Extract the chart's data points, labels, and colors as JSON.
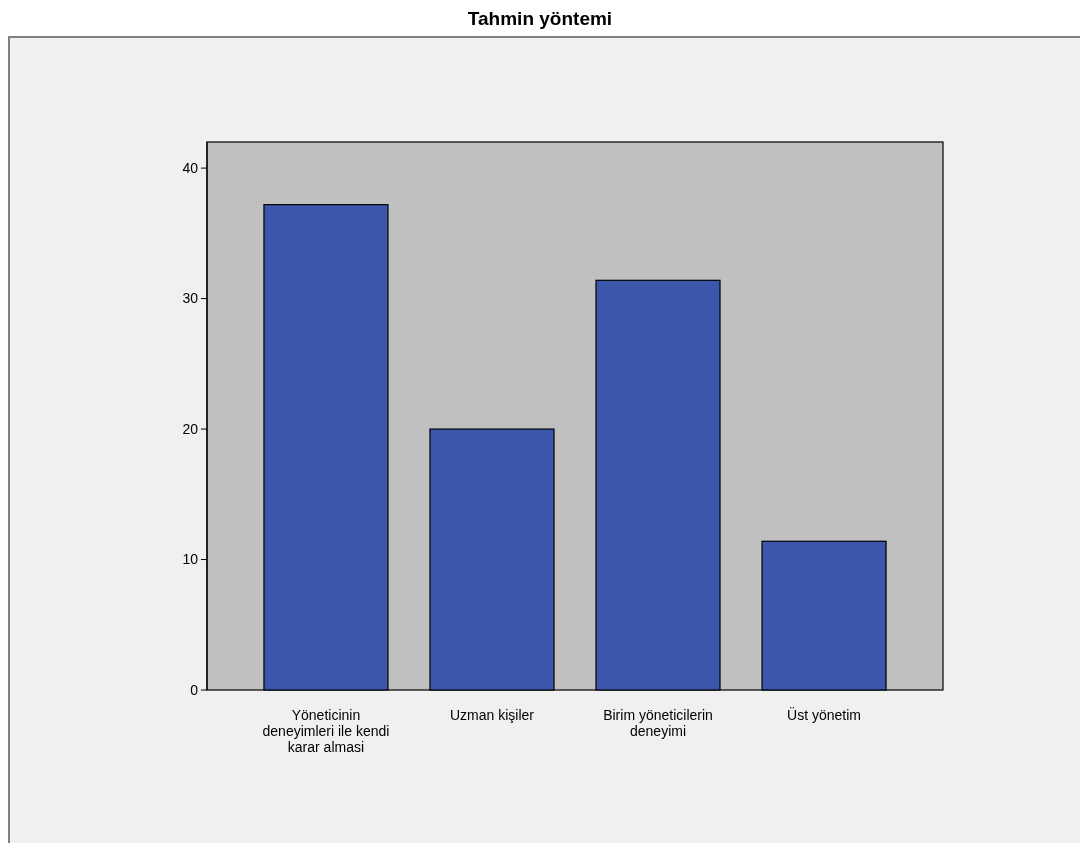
{
  "chart_data": {
    "type": "bar",
    "title": "Tahmin yöntemi",
    "categories": [
      "Yöneticinin deneyimleri ile kendi karar almasi",
      "Uzman kişiler",
      "Birim yöneticilerin deneyimi",
      "Üst yönetim"
    ],
    "values": [
      37.2,
      20,
      31.4,
      11.4
    ],
    "color": "#3c56ab",
    "ylim": [
      0,
      42
    ],
    "yticks": [
      0,
      10,
      20,
      30,
      40
    ],
    "grid": false
  }
}
